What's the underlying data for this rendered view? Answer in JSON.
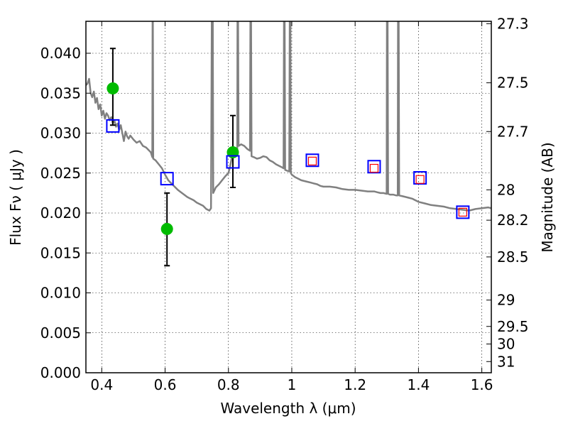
{
  "chart_data": {
    "type": "scatter",
    "title": "",
    "xlabel": "Wavelength  λ (μm)",
    "ylabel": "Flux  Fν  ( μJy )",
    "y2label": "Magnitude (AB)",
    "xlim": [
      0.35,
      1.63
    ],
    "ylim": [
      0.0,
      0.044
    ],
    "grid": true,
    "x_ticks": [
      0.4,
      0.6,
      0.8,
      1.0,
      1.2,
      1.4,
      1.6
    ],
    "x_tick_labels": [
      "0.4",
      "0.6",
      "0.8",
      "1",
      "1.2",
      "1.4",
      "1.6"
    ],
    "y_ticks": [
      0.0,
      0.005,
      0.01,
      0.015,
      0.02,
      0.025,
      0.03,
      0.035,
      0.04
    ],
    "y_tick_labels": [
      "0.000",
      "0.005",
      "0.010",
      "0.015",
      "0.020",
      "0.025",
      "0.030",
      "0.035",
      "0.040"
    ],
    "y2_ticks": [
      {
        "label": "27.3",
        "flux": 0.0437
      },
      {
        "label": "27.5",
        "flux": 0.0363
      },
      {
        "label": "27.7",
        "flux": 0.0302
      },
      {
        "label": "28",
        "flux": 0.0229
      },
      {
        "label": "28.2",
        "flux": 0.0191
      },
      {
        "label": "28.5",
        "flux": 0.0145
      },
      {
        "label": "29",
        "flux": 0.0091
      },
      {
        "label": "29.5",
        "flux": 0.0058
      },
      {
        "label": "30",
        "flux": 0.0036
      },
      {
        "label": "31",
        "flux": 0.0014
      }
    ],
    "series": [
      {
        "kind": "line",
        "color": "#808080",
        "points": [
          [
            0.35,
            0.036
          ],
          [
            0.355,
            0.0362
          ],
          [
            0.36,
            0.0368
          ],
          [
            0.365,
            0.035
          ],
          [
            0.37,
            0.0345
          ],
          [
            0.375,
            0.0352
          ],
          [
            0.38,
            0.0338
          ],
          [
            0.385,
            0.0344
          ],
          [
            0.39,
            0.033
          ],
          [
            0.395,
            0.0336
          ],
          [
            0.4,
            0.0322
          ],
          [
            0.405,
            0.0328
          ],
          [
            0.41,
            0.0318
          ],
          [
            0.415,
            0.0325
          ],
          [
            0.42,
            0.0322
          ],
          [
            0.425,
            0.0316
          ],
          [
            0.43,
            0.032
          ],
          [
            0.435,
            0.0312
          ],
          [
            0.44,
            0.0316
          ],
          [
            0.445,
            0.0308
          ],
          [
            0.45,
            0.0312
          ],
          [
            0.455,
            0.0304
          ],
          [
            0.46,
            0.031
          ],
          [
            0.465,
            0.03
          ],
          [
            0.47,
            0.029
          ],
          [
            0.475,
            0.0302
          ],
          [
            0.48,
            0.0296
          ],
          [
            0.485,
            0.0293
          ],
          [
            0.49,
            0.0297
          ],
          [
            0.5,
            0.0292
          ],
          [
            0.51,
            0.0288
          ],
          [
            0.52,
            0.029
          ],
          [
            0.53,
            0.0284
          ],
          [
            0.54,
            0.0282
          ],
          [
            0.55,
            0.0278
          ],
          [
            0.555,
            0.0276
          ],
          [
            0.5595,
            0.027
          ],
          [
            0.5605,
            0.044
          ],
          [
            0.5615,
            0.044
          ],
          [
            0.5625,
            0.0268
          ],
          [
            0.57,
            0.0266
          ],
          [
            0.58,
            0.0261
          ],
          [
            0.59,
            0.0256
          ],
          [
            0.6,
            0.0248
          ],
          [
            0.61,
            0.0241
          ],
          [
            0.62,
            0.0237
          ],
          [
            0.63,
            0.0233
          ],
          [
            0.64,
            0.0229
          ],
          [
            0.65,
            0.0226
          ],
          [
            0.66,
            0.0223
          ],
          [
            0.67,
            0.022
          ],
          [
            0.68,
            0.0218
          ],
          [
            0.69,
            0.0216
          ],
          [
            0.7,
            0.0213
          ],
          [
            0.71,
            0.0211
          ],
          [
            0.72,
            0.0209
          ],
          [
            0.73,
            0.0205
          ],
          [
            0.74,
            0.0203
          ],
          [
            0.745,
            0.0206
          ],
          [
            0.7475,
            0.044
          ],
          [
            0.7505,
            0.044
          ],
          [
            0.752,
            0.0225
          ],
          [
            0.76,
            0.0232
          ],
          [
            0.77,
            0.0236
          ],
          [
            0.78,
            0.0241
          ],
          [
            0.79,
            0.0246
          ],
          [
            0.8,
            0.025
          ],
          [
            0.805,
            0.0258
          ],
          [
            0.81,
            0.0268
          ],
          [
            0.82,
            0.0275
          ],
          [
            0.825,
            0.0279
          ],
          [
            0.828,
            0.028
          ],
          [
            0.8285,
            0.044
          ],
          [
            0.8305,
            0.044
          ],
          [
            0.832,
            0.0284
          ],
          [
            0.84,
            0.0286
          ],
          [
            0.85,
            0.0284
          ],
          [
            0.86,
            0.028
          ],
          [
            0.868,
            0.0278
          ],
          [
            0.8695,
            0.044
          ],
          [
            0.8715,
            0.044
          ],
          [
            0.873,
            0.0271
          ],
          [
            0.88,
            0.027
          ],
          [
            0.89,
            0.0268
          ],
          [
            0.9,
            0.0269
          ],
          [
            0.91,
            0.0271
          ],
          [
            0.92,
            0.027
          ],
          [
            0.93,
            0.0266
          ],
          [
            0.94,
            0.0264
          ],
          [
            0.95,
            0.0261
          ],
          [
            0.96,
            0.0259
          ],
          [
            0.97,
            0.0257
          ],
          [
            0.974,
            0.0256
          ],
          [
            0.9755,
            0.044
          ],
          [
            0.9775,
            0.044
          ],
          [
            0.979,
            0.0254
          ],
          [
            0.985,
            0.0253
          ],
          [
            0.992,
            0.0252
          ],
          [
            0.9935,
            0.044
          ],
          [
            0.9955,
            0.044
          ],
          [
            0.997,
            0.025
          ],
          [
            1.0,
            0.0248
          ],
          [
            1.01,
            0.0245
          ],
          [
            1.02,
            0.0243
          ],
          [
            1.03,
            0.0241
          ],
          [
            1.04,
            0.024
          ],
          [
            1.05,
            0.0239
          ],
          [
            1.06,
            0.0238
          ],
          [
            1.07,
            0.0237
          ],
          [
            1.08,
            0.0236
          ],
          [
            1.09,
            0.0234
          ],
          [
            1.1,
            0.0233
          ],
          [
            1.12,
            0.0233
          ],
          [
            1.14,
            0.0232
          ],
          [
            1.16,
            0.023
          ],
          [
            1.18,
            0.0229
          ],
          [
            1.2,
            0.0229
          ],
          [
            1.22,
            0.0228
          ],
          [
            1.24,
            0.0227
          ],
          [
            1.26,
            0.0227
          ],
          [
            1.27,
            0.0226
          ],
          [
            1.28,
            0.0225
          ],
          [
            1.29,
            0.0225
          ],
          [
            1.2995,
            0.0224
          ],
          [
            1.3005,
            0.044
          ],
          [
            1.3025,
            0.044
          ],
          [
            1.304,
            0.0224
          ],
          [
            1.31,
            0.0223
          ],
          [
            1.32,
            0.0223
          ],
          [
            1.33,
            0.0222
          ],
          [
            1.3345,
            0.0222
          ],
          [
            1.3355,
            0.044
          ],
          [
            1.3375,
            0.044
          ],
          [
            1.339,
            0.0222
          ],
          [
            1.35,
            0.0221
          ],
          [
            1.36,
            0.022
          ],
          [
            1.37,
            0.0219
          ],
          [
            1.38,
            0.0218
          ],
          [
            1.39,
            0.0216
          ],
          [
            1.4,
            0.0214
          ],
          [
            1.42,
            0.0212
          ],
          [
            1.44,
            0.021
          ],
          [
            1.46,
            0.0209
          ],
          [
            1.48,
            0.0208
          ],
          [
            1.5,
            0.0206
          ],
          [
            1.52,
            0.0205
          ],
          [
            1.54,
            0.0204
          ],
          [
            1.56,
            0.0203
          ],
          [
            1.58,
            0.0205
          ],
          [
            1.6,
            0.0206
          ],
          [
            1.62,
            0.0207
          ],
          [
            1.63,
            0.0206
          ]
        ]
      },
      {
        "kind": "errorbar",
        "marker": "circle",
        "color": "#00bb00",
        "points": [
          {
            "x": 0.435,
            "y": 0.0356,
            "yerr_low": 0.031,
            "yerr_high": 0.0406
          },
          {
            "x": 0.606,
            "y": 0.018,
            "yerr_low": 0.0134,
            "yerr_high": 0.0225
          },
          {
            "x": 0.814,
            "y": 0.0276,
            "yerr_low": 0.0232,
            "yerr_high": 0.0322
          }
        ]
      },
      {
        "kind": "scatter",
        "marker": "square-open",
        "color": "#0000ff",
        "points": [
          [
            0.435,
            0.0309
          ],
          [
            0.606,
            0.0243
          ],
          [
            0.814,
            0.0264
          ],
          [
            1.065,
            0.0266
          ],
          [
            1.26,
            0.0258
          ],
          [
            1.405,
            0.0244
          ],
          [
            1.54,
            0.0201
          ]
        ]
      },
      {
        "kind": "scatter",
        "marker": "square-open",
        "color": "#ff0000",
        "points": [
          [
            1.065,
            0.0265
          ],
          [
            1.26,
            0.0256
          ],
          [
            1.405,
            0.0242
          ],
          [
            1.54,
            0.0201
          ]
        ]
      }
    ]
  }
}
